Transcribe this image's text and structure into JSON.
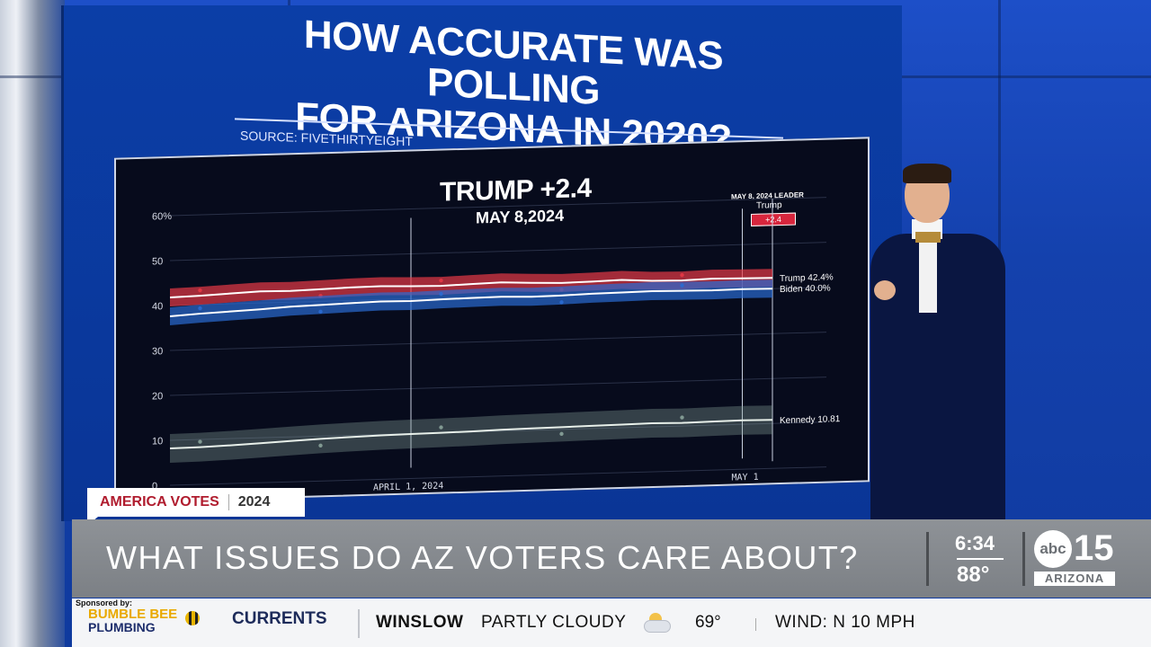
{
  "screen": {
    "title_line1": "HOW ACCURATE WAS POLLING",
    "title_line2": "FOR ARIZONA IN 2020?",
    "source": "SOURCE: FIVETHIRTYEIGHT"
  },
  "chart_data": {
    "type": "line",
    "title": "TRUMP +2.4",
    "subtitle": "MAY 8,2024",
    "leader_box": {
      "title": "MAY 8, 2024 LEADER",
      "name": "Trump",
      "margin": "+2.4"
    },
    "y_ticks": [
      "60%",
      "50",
      "40",
      "30",
      "20",
      "10",
      "0"
    ],
    "ylim": [
      0,
      60
    ],
    "x_ticks": [
      "APRIL 1, 2024",
      "MAY 1"
    ],
    "x": [
      0,
      6,
      12,
      18,
      24,
      30,
      36,
      42,
      48,
      54,
      60,
      66,
      72,
      78,
      84,
      90,
      96,
      102,
      108,
      114,
      120
    ],
    "series": [
      {
        "name": "Trump",
        "end_label": "Trump 42.4%",
        "color": "#e63946",
        "values": [
          41.8,
          42.0,
          42.3,
          42.6,
          42.5,
          42.7,
          42.9,
          43.0,
          42.8,
          42.7,
          42.9,
          43.1,
          42.8,
          42.6,
          42.7,
          42.9,
          42.5,
          42.4,
          42.6,
          42.5,
          42.4
        ]
      },
      {
        "name": "Biden",
        "end_label": "Biden 40.0%",
        "color": "#2a6bd1",
        "values": [
          37.6,
          38.0,
          38.3,
          38.6,
          39.0,
          39.2,
          39.4,
          39.6,
          39.5,
          39.7,
          39.8,
          39.9,
          39.7,
          39.8,
          40.0,
          40.1,
          40.2,
          40.1,
          40.0,
          40.1,
          40.0
        ]
      },
      {
        "name": "Kennedy",
        "end_label": "Kennedy 10.81",
        "color": "#8aa39a",
        "values": [
          8.2,
          8.3,
          8.5,
          8.8,
          9.1,
          9.4,
          9.6,
          9.8,
          9.9,
          10.0,
          10.1,
          10.3,
          10.4,
          10.5,
          10.6,
          10.7,
          10.8,
          10.7,
          10.8,
          10.9,
          10.81
        ]
      }
    ],
    "grid": true
  },
  "lower_third": {
    "tag_label": "AMERICA VOTES",
    "tag_year": "2024",
    "headline": "WHAT ISSUES DO AZ VOTERS CARE ABOUT?",
    "time": "6:34",
    "temperature": "88°",
    "logo_abc": "abc",
    "logo_num": "15",
    "logo_state": "ARIZONA"
  },
  "ticker": {
    "sponsored_by": "Sponsored by:",
    "sponsor_line1": "BUMBLE BEE",
    "sponsor_line2": "PLUMBING",
    "section": "CURRENTS",
    "city": "WINSLOW",
    "condition": "PARTLY CLOUDY",
    "temp": "69°",
    "wind": "WIND: N 10 MPH",
    "weather_icon": "partly-cloudy-icon"
  }
}
